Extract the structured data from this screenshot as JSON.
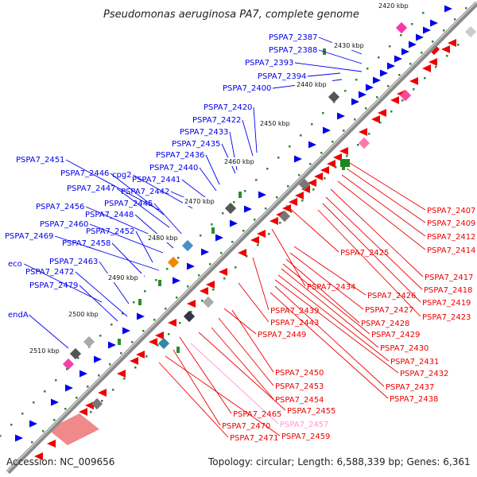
{
  "title": "Pseudomonas aeruginosa PA7, complete genome",
  "footer": {
    "accession": "Accession: NC_009656",
    "summary": "Topology: circular; Length: 6,588,339 bp; Genes: 6,361"
  },
  "colors": {
    "forward": "#0000ee",
    "reverse": "#ee0000",
    "backbone": "#8a8a8a",
    "ticks": "#2e8b2e",
    "pseudo": "#ff99cc"
  },
  "kbp_ticks": [
    "2420 kbp",
    "2430 kbp",
    "2440 kbp",
    "2450 kbp",
    "2460 kbp",
    "2470 kbp",
    "2480 kbp",
    "2490 kbp",
    "2500 kbp",
    "2510 kbp"
  ],
  "forward_genes": [
    "PSPA7_2387",
    "PSPA7_2388",
    "PSPA7_2393",
    "PSPA7_2394",
    "PSPA7_2400",
    "PSPA7_2420",
    "PSPA7_2422",
    "PSPA7_2433",
    "PSPA7_2435",
    "PSPA7_2436",
    "PSPA7_2440",
    "PSPA7_2441",
    "PSPA7_2442",
    "PSPA7_2451",
    "PSPA7_2446",
    "cpg2",
    "PSPA7_2447",
    "PSPA7_2445",
    "PSPA7_2456",
    "PSPA7_2448",
    "PSPA7_2460",
    "PSPA7_2452",
    "PSPA7_2469",
    "PSPA7_2458",
    "eco",
    "PSPA7_2463",
    "PSPA7_2472",
    "PSPA7_2479",
    "endA"
  ],
  "reverse_genes": [
    "PSPA7_2407",
    "PSPA7_2409",
    "PSPA7_2412",
    "PSPA7_2414",
    "PSPA7_2417",
    "PSPA7_2425",
    "PSPA7_2418",
    "PSPA7_2419",
    "PSPA7_2423",
    "PSPA7_2434",
    "PSPA7_2426",
    "PSPA7_2427",
    "PSPA7_2439",
    "PSPA7_2428",
    "PSPA7_2443",
    "PSPA7_2429",
    "PSPA7_2449",
    "PSPA7_2430",
    "PSPA7_2431",
    "PSPA7_2432",
    "PSPA7_2450",
    "PSPA7_2437",
    "PSPA7_2453",
    "PSPA7_2438",
    "PSPA7_2454",
    "PSPA7_2455",
    "PSPA7_2465",
    "PSPA7_2457",
    "PSPA7_2470",
    "PSPA7_2459",
    "PSPA7_2471"
  ]
}
